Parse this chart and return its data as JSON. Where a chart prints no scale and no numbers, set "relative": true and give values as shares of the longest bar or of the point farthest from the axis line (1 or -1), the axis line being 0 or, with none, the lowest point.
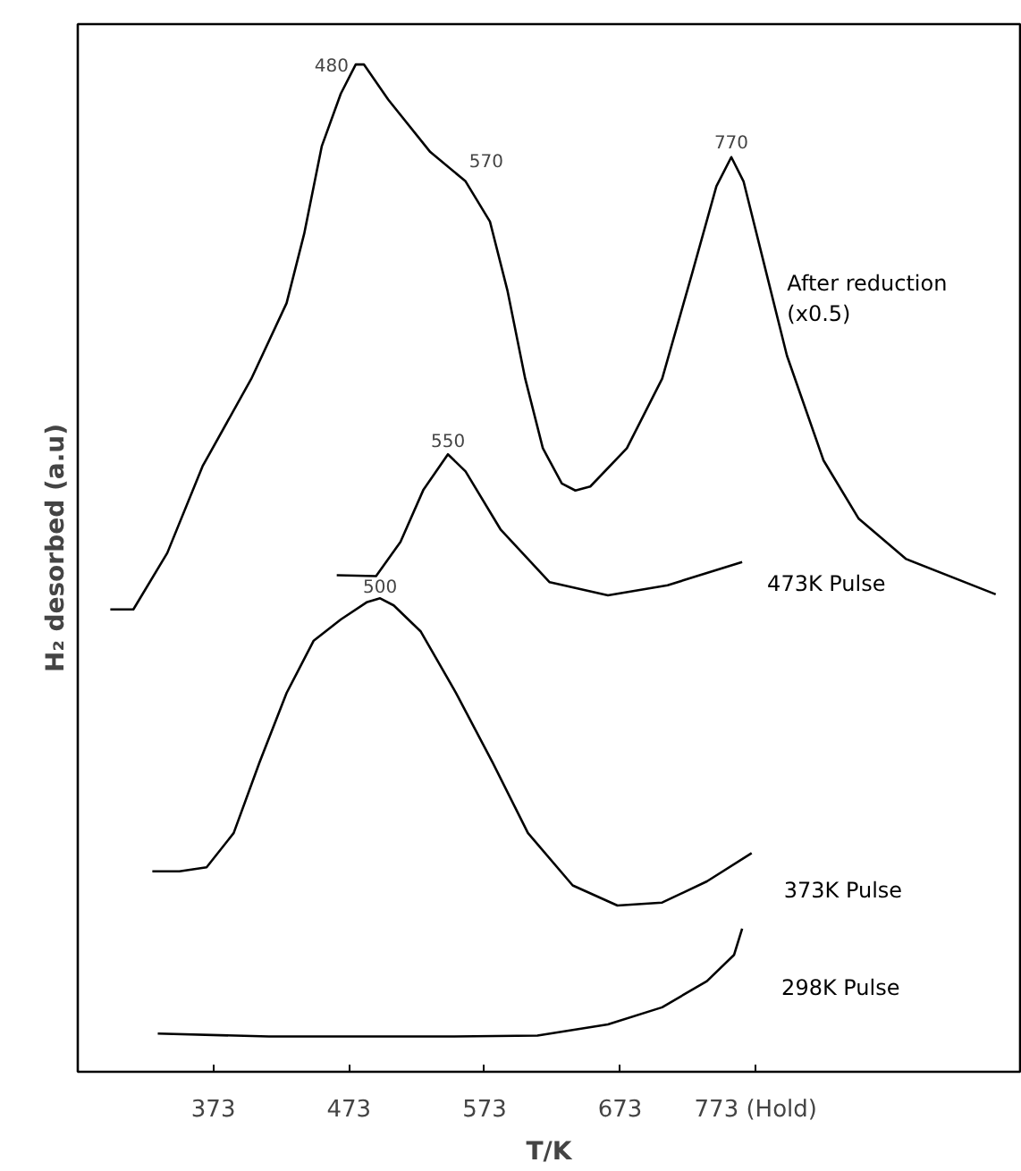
{
  "chart_data": {
    "type": "line",
    "relative": true,
    "xlabel": "T/K",
    "ylabel": "H₂ desorbed (a.u)",
    "xlim": [
      273,
      968
    ],
    "xticks": [
      373,
      473,
      573,
      673,
      {
        "value": 773,
        "label": "773 (Hold)"
      }
    ],
    "grid": false,
    "tick_labels": "x",
    "marker": "none",
    "line_style": "solid",
    "series": [
      {
        "name": "After reduction\n(x0.5)",
        "color": "#000000",
        "x": [
          297,
          314,
          339,
          365,
          401,
          427,
          440,
          453,
          467,
          478,
          484,
          502,
          533,
          559,
          577,
          590,
          603,
          616,
          630,
          640,
          651,
          678,
          704,
          726,
          744,
          755,
          764,
          779,
          796,
          823,
          849,
          884,
          950
        ],
        "values": [
          0.459,
          0.459,
          0.515,
          0.601,
          0.688,
          0.763,
          0.832,
          0.919,
          0.971,
          1.0,
          1.0,
          0.965,
          0.913,
          0.884,
          0.844,
          0.775,
          0.688,
          0.619,
          0.584,
          0.577,
          0.581,
          0.619,
          0.688,
          0.792,
          0.879,
          0.908,
          0.884,
          0.803,
          0.711,
          0.607,
          0.549,
          0.509,
          0.474
        ]
      },
      {
        "name": "473K Pulse",
        "color": "#000000",
        "x": [
          464,
          493,
          511,
          528,
          546,
          559,
          585,
          621,
          664,
          708,
          763
        ],
        "values": [
          0.493,
          0.492,
          0.526,
          0.578,
          0.613,
          0.596,
          0.538,
          0.486,
          0.473,
          0.483,
          0.506
        ]
      },
      {
        "name": "373K Pulse",
        "color": "#000000",
        "x": [
          328,
          348,
          368,
          388,
          407,
          427,
          447,
          467,
          486,
          496,
          506,
          526,
          552,
          579,
          605,
          638,
          671,
          704,
          737,
          770
        ],
        "values": [
          0.199,
          0.199,
          0.203,
          0.237,
          0.307,
          0.376,
          0.428,
          0.449,
          0.466,
          0.47,
          0.463,
          0.437,
          0.376,
          0.307,
          0.237,
          0.185,
          0.165,
          0.168,
          0.189,
          0.217
        ]
      },
      {
        "name": "298K Pulse",
        "color": "#000000",
        "x": [
          332,
          414,
          546,
          612,
          664,
          704,
          737,
          757,
          763
        ],
        "values": [
          0.038,
          0.035,
          0.035,
          0.036,
          0.047,
          0.064,
          0.09,
          0.116,
          0.142
        ]
      }
    ],
    "annotations": [
      "480",
      "570",
      "770",
      "550",
      "500"
    ]
  }
}
